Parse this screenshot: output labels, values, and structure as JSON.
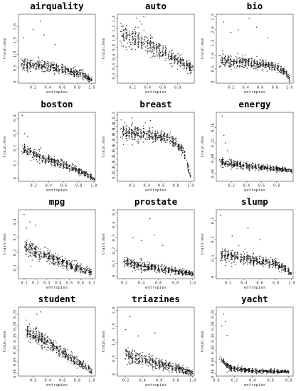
{
  "chart_data": [
    {
      "type": "scatter",
      "title": "airquality",
      "xlabel": "entropies",
      "ylabel": "train.mse",
      "xlim": [
        0,
        1.05
      ],
      "ylim": [
        -0.05,
        2.45
      ],
      "xticks": [
        0.2,
        0.4,
        0.6,
        0.8,
        1.0
      ],
      "xtick_labels": [
        "0.2",
        "0.4",
        "0.6",
        "0.8",
        "1.0"
      ],
      "yticks": [
        0,
        0.5,
        1.0,
        1.5,
        2.0
      ],
      "ytick_labels": [
        "0",
        "0.5",
        "1.0",
        "1.5",
        "2.0"
      ],
      "trend": [
        [
          0.05,
          0.62
        ],
        [
          0.3,
          0.6
        ],
        [
          0.6,
          0.45
        ],
        [
          0.85,
          0.3
        ],
        [
          1.0,
          0.05
        ]
      ],
      "spread": 0.22,
      "outlier_points": [
        [
          0.2,
          1.9
        ],
        [
          0.3,
          2.2
        ],
        [
          0.35,
          1.7
        ],
        [
          0.07,
          1.6
        ],
        [
          0.5,
          1.35
        ]
      ]
    },
    {
      "type": "scatter",
      "title": "auto",
      "xlabel": "entropies",
      "ylabel": "train.mse",
      "xlim": [
        0,
        1.02
      ],
      "ylim": [
        0.05,
        1.5
      ],
      "xticks": [
        0.2,
        0.4,
        0.6,
        0.8
      ],
      "xtick_labels": [
        "0.2",
        "0.4",
        "0.6",
        "0.8"
      ],
      "yticks": [
        0.2,
        0.4,
        0.6,
        0.8,
        1.0,
        1.2,
        1.4
      ],
      "ytick_labels": [
        "0.2",
        "0.4",
        "0.6",
        "0.8",
        "1.0",
        "1.2",
        "1.4"
      ],
      "trend": [
        [
          0.05,
          1.05
        ],
        [
          0.3,
          0.95
        ],
        [
          0.6,
          0.7
        ],
        [
          0.85,
          0.5
        ],
        [
          1.0,
          0.35
        ]
      ],
      "spread": 0.22,
      "outlier_points": [
        [
          0.25,
          1.42
        ],
        [
          0.35,
          1.45
        ],
        [
          0.3,
          1.35
        ]
      ]
    },
    {
      "type": "scatter",
      "title": "bio",
      "xlabel": "entropies",
      "ylabel": "train.mse",
      "xlim": [
        0,
        1.05
      ],
      "ylim": [
        -0.05,
        2.6
      ],
      "xticks": [
        0.2,
        0.4,
        0.6,
        0.8,
        1.0
      ],
      "xtick_labels": [
        "0.2",
        "0.4",
        "0.6",
        "0.8",
        "1.0"
      ],
      "yticks": [
        0,
        0.5,
        1.0,
        1.5,
        2.0,
        2.5
      ],
      "ytick_labels": [
        "0",
        "0.5",
        "1.0",
        "1.5",
        "2.0",
        "2.5"
      ],
      "trend": [
        [
          0.05,
          0.8
        ],
        [
          0.4,
          0.75
        ],
        [
          0.8,
          0.6
        ],
        [
          0.95,
          0.35
        ],
        [
          1.0,
          0.1
        ]
      ],
      "spread": 0.25,
      "outlier_points": [
        [
          0.1,
          2.3
        ],
        [
          0.3,
          2.0
        ],
        [
          0.55,
          2.1
        ],
        [
          0.2,
          1.9
        ],
        [
          0.7,
          1.7
        ],
        [
          0.45,
          2.45
        ]
      ]
    },
    {
      "type": "scatter",
      "title": "boston",
      "xlabel": "entropies",
      "ylabel": "train.mse",
      "xlim": [
        0,
        1.02
      ],
      "ylim": [
        -0.02,
        0.44
      ],
      "xticks": [
        0.2,
        0.4,
        0.6,
        0.8,
        1.0
      ],
      "xtick_labels": [
        "0.2",
        "0.4",
        "0.6",
        "0.8",
        "1.0"
      ],
      "yticks": [
        0,
        0.1,
        0.2,
        0.3,
        0.4
      ],
      "ytick_labels": [
        "0",
        "0.1",
        "0.2",
        "0.3",
        "0.4"
      ],
      "trend": [
        [
          0.05,
          0.2
        ],
        [
          0.3,
          0.14
        ],
        [
          0.6,
          0.09
        ],
        [
          0.85,
          0.04
        ],
        [
          1.0,
          0.0
        ]
      ],
      "spread": 0.035,
      "outlier_points": [
        [
          0.05,
          0.42
        ],
        [
          0.08,
          0.3
        ],
        [
          0.12,
          0.28
        ]
      ]
    },
    {
      "type": "scatter",
      "title": "breast",
      "xlabel": "entropies",
      "ylabel": "train.mse",
      "xlim": [
        0,
        1.05
      ],
      "ylim": [
        0,
        1.25
      ],
      "xticks": [
        0.2,
        0.4,
        0.6,
        0.8,
        1.0
      ],
      "xtick_labels": [
        "0.2",
        "0.4",
        "0.6",
        "0.8",
        "1.0"
      ],
      "yticks": [
        0.1,
        0.2,
        0.3,
        0.4,
        0.5,
        0.6,
        0.7,
        0.8,
        0.9,
        1.0,
        1.1,
        1.2
      ],
      "ytick_labels": [
        "0.1",
        "0.2",
        "0.3",
        "0.4",
        "0.5",
        "0.6",
        "0.7",
        "0.8",
        "0.9",
        "1.0",
        "1.1",
        "1.2"
      ],
      "trend": [
        [
          0.05,
          0.9
        ],
        [
          0.4,
          0.85
        ],
        [
          0.7,
          0.8
        ],
        [
          0.9,
          0.55
        ],
        [
          1.0,
          0.1
        ]
      ],
      "spread": 0.14,
      "outlier_points": [
        [
          0.2,
          1.15
        ],
        [
          0.45,
          1.1
        ]
      ]
    },
    {
      "type": "scatter",
      "title": "energy",
      "xlabel": "entropies",
      "ylabel": "train.mse",
      "xlim": [
        0,
        1.02
      ],
      "ylim": [
        0.02,
        0.2
      ],
      "xticks": [
        0.2,
        0.4,
        0.6,
        0.8
      ],
      "xtick_labels": [
        "0.2",
        "0.4",
        "0.6",
        "0.8"
      ],
      "yticks": [
        0.04,
        0.08,
        0.12,
        0.16
      ],
      "ytick_labels": [
        "0.04",
        "0.08",
        "0.12",
        "0.16"
      ],
      "trend": [
        [
          0.05,
          0.07
        ],
        [
          0.3,
          0.062
        ],
        [
          0.6,
          0.056
        ],
        [
          0.9,
          0.05
        ],
        [
          1.0,
          0.048
        ]
      ],
      "spread": 0.01,
      "outlier_points": [
        [
          0.08,
          0.19
        ],
        [
          0.1,
          0.14
        ],
        [
          0.12,
          0.12
        ],
        [
          0.15,
          0.1
        ]
      ]
    },
    {
      "type": "scatter",
      "title": "mpg",
      "xlabel": "entropies",
      "ylabel": "train.mse",
      "xlim": [
        0.05,
        0.73
      ],
      "ylim": [
        0.03,
        0.48
      ],
      "xticks": [
        0.1,
        0.2,
        0.3,
        0.4,
        0.5,
        0.6,
        0.7
      ],
      "xtick_labels": [
        "0.1",
        "0.2",
        "0.3",
        "0.4",
        "0.5",
        "0.6",
        "0.7"
      ],
      "yticks": [
        0.1,
        0.2,
        0.3,
        0.4
      ],
      "ytick_labels": [
        "0.1",
        "0.2",
        "0.3",
        "0.4"
      ],
      "trend": [
        [
          0.1,
          0.24
        ],
        [
          0.3,
          0.18
        ],
        [
          0.5,
          0.12
        ],
        [
          0.7,
          0.07
        ]
      ],
      "spread": 0.045,
      "outlier_points": [
        [
          0.1,
          0.45
        ],
        [
          0.15,
          0.4
        ],
        [
          0.2,
          0.38
        ],
        [
          0.12,
          0.36
        ]
      ]
    },
    {
      "type": "scatter",
      "title": "prostate",
      "xlabel": "entropies",
      "ylabel": "train.mse",
      "xlim": [
        0.12,
        1.02
      ],
      "ylim": [
        -0.02,
        0.52
      ],
      "xticks": [
        0.2,
        0.4,
        0.6,
        0.8,
        1.0
      ],
      "xtick_labels": [
        "0.2",
        "0.4",
        "0.6",
        "0.8",
        "1.0"
      ],
      "yticks": [
        0,
        0.1,
        0.2,
        0.3,
        0.4,
        0.5
      ],
      "ytick_labels": [
        "0",
        "0.1",
        "0.2",
        "0.3",
        "0.4",
        "0.5"
      ],
      "trend": [
        [
          0.2,
          0.11
        ],
        [
          0.5,
          0.07
        ],
        [
          0.8,
          0.04
        ],
        [
          1.0,
          0.02
        ]
      ],
      "spread": 0.04,
      "outlier_points": [
        [
          0.5,
          0.45
        ],
        [
          0.3,
          0.3
        ],
        [
          0.55,
          0.32
        ],
        [
          0.4,
          0.28
        ],
        [
          0.65,
          0.24
        ]
      ]
    },
    {
      "type": "scatter",
      "title": "slump",
      "xlabel": "entropies",
      "ylabel": "train.mse",
      "xlim": [
        0.05,
        1.02
      ],
      "ylim": [
        -0.01,
        0.36
      ],
      "xticks": [
        0.2,
        0.4,
        0.6,
        0.8,
        1.0
      ],
      "xtick_labels": [
        "0.2",
        "0.4",
        "0.6",
        "0.8",
        "1.0"
      ],
      "yticks": [
        0,
        0.1,
        0.2,
        0.3
      ],
      "ytick_labels": [
        "0",
        "0.1",
        "0.2",
        "0.3"
      ],
      "trend": [
        [
          0.1,
          0.12
        ],
        [
          0.4,
          0.1
        ],
        [
          0.8,
          0.07
        ],
        [
          1.0,
          0.02
        ]
      ],
      "spread": 0.035,
      "outlier_points": [
        [
          0.1,
          0.33
        ],
        [
          0.25,
          0.22
        ],
        [
          0.45,
          0.26
        ],
        [
          0.6,
          0.2
        ]
      ]
    },
    {
      "type": "scatter",
      "title": "student",
      "xlabel": "entropies",
      "ylabel": "train.mse",
      "xlim": [
        0,
        1.05
      ],
      "ylim": [
        -0.01,
        0.28
      ],
      "xticks": [
        0.2,
        0.4,
        0.6,
        0.8,
        1.0
      ],
      "xtick_labels": [
        "0.2",
        "0.4",
        "0.6",
        "0.8",
        "1.0"
      ],
      "yticks": [
        0,
        0.05,
        0.1,
        0.15,
        0.2,
        0.25
      ],
      "ytick_labels": [
        "0.00",
        "0.05",
        "0.10",
        "0.15",
        "0.20",
        "0.25"
      ],
      "trend": [
        [
          0.1,
          0.18
        ],
        [
          0.4,
          0.13
        ],
        [
          0.7,
          0.07
        ],
        [
          1.0,
          0.01
        ]
      ],
      "spread": 0.03,
      "outlier_points": [
        [
          0.3,
          0.26
        ],
        [
          0.25,
          0.25
        ]
      ]
    },
    {
      "type": "scatter",
      "title": "triazines",
      "xlabel": "entropies",
      "ylabel": "train.mse",
      "xlim": [
        0.1,
        1.02
      ],
      "ylim": [
        -0.05,
        2.1
      ],
      "xticks": [
        0.2,
        0.4,
        0.6,
        0.8,
        1.0
      ],
      "xtick_labels": [
        "0.2",
        "0.4",
        "0.6",
        "0.8",
        "1.0"
      ],
      "yticks": [
        0,
        0.5,
        1.0,
        1.5,
        2.0
      ],
      "ytick_labels": [
        "0",
        "0.5",
        "1.0",
        "1.5",
        "2.0"
      ],
      "trend": [
        [
          0.2,
          0.6
        ],
        [
          0.5,
          0.4
        ],
        [
          0.8,
          0.2
        ],
        [
          1.0,
          0.05
        ]
      ],
      "spread": 0.2,
      "outlier_points": [
        [
          0.25,
          1.8
        ],
        [
          0.35,
          1.2
        ],
        [
          0.2,
          1.4
        ],
        [
          0.55,
          1.3
        ]
      ]
    },
    {
      "type": "scatter",
      "title": "yacht",
      "xlabel": "entropies",
      "ylabel": "train.mse",
      "xlim": [
        0,
        0.85
      ],
      "ylim": [
        -0.01,
        0.28
      ],
      "xticks": [
        0.0,
        0.2,
        0.4,
        0.6,
        0.8
      ],
      "xtick_labels": [
        "0.0",
        "0.2",
        "0.4",
        "0.6",
        "0.8"
      ],
      "yticks": [
        0,
        0.05,
        0.1,
        0.15,
        0.2,
        0.25
      ],
      "ytick_labels": [
        "0.00",
        "0.05",
        "0.10",
        "0.15",
        "0.20",
        "0.25"
      ],
      "trend": [
        [
          0.05,
          0.06
        ],
        [
          0.15,
          0.025
        ],
        [
          0.4,
          0.012
        ],
        [
          0.8,
          0.008
        ]
      ],
      "spread": 0.012,
      "outlier_points": [
        [
          0.08,
          0.25
        ],
        [
          0.1,
          0.22
        ],
        [
          0.06,
          0.2
        ],
        [
          0.12,
          0.16
        ]
      ]
    }
  ]
}
